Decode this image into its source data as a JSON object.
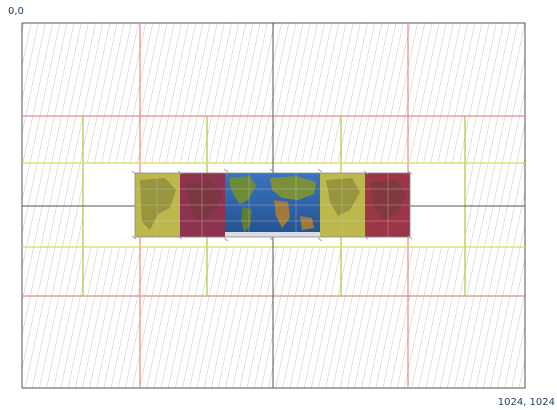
{
  "labels": {
    "origin": "0,0",
    "extent": "1024, 1024"
  },
  "colors": {
    "frame": "#555555",
    "hatch": "#b7b7b7",
    "red_grid": "#e58b8b",
    "green_grid": "#a4cc3c",
    "yellow_grid": "#d8dc5a",
    "ocean": "#2f64b0",
    "land": "#6e8c37",
    "red_tint": "#9b3547",
    "yellow_tint": "#c8c24e"
  },
  "diagram": {
    "world_width": 1024,
    "world_height": 1024
  }
}
